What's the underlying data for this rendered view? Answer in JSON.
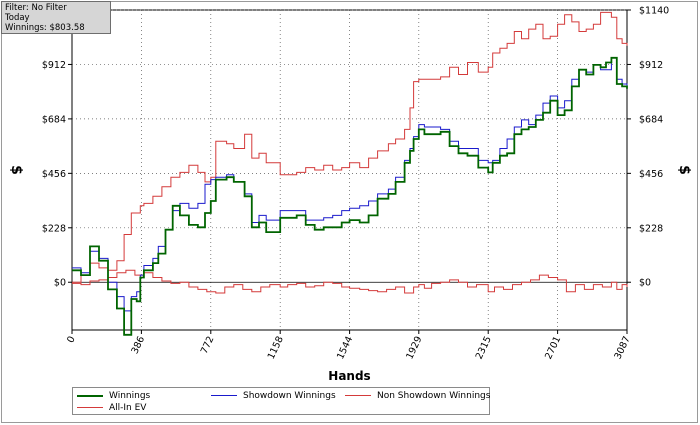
{
  "filter_panel": {
    "line1": "Filter: No Filter",
    "line2": "Today",
    "line3": "Winnings: $803.58"
  },
  "chart_data": {
    "type": "line",
    "xlabel": "Hands",
    "ylabel_left": "$",
    "ylabel_right": "$",
    "xlim": [
      0,
      3087
    ],
    "ylim": [
      -200,
      1140
    ],
    "x_ticks": [
      0,
      386,
      772,
      1158,
      1544,
      1929,
      2315,
      2701,
      3087
    ],
    "x_tick_labels": [
      "0",
      "386",
      "772",
      "1158",
      "1544",
      "1929",
      "2315",
      "2701",
      "3087"
    ],
    "y_ticks": [
      0,
      228,
      456,
      684,
      912,
      1140
    ],
    "y_tick_labels": [
      "$0",
      "$228",
      "$456",
      "$684",
      "$912",
      "$1140"
    ],
    "grid": true,
    "legend_position": "bottom",
    "colors": {
      "winnings": "#006400",
      "showdown": "#1a1acc",
      "non_showdown": "#d43a3a",
      "allin": "#d43a3a"
    },
    "series": [
      {
        "name": "Winnings",
        "key": "winnings",
        "x": [
          0,
          50,
          100,
          150,
          200,
          250,
          290,
          330,
          360,
          380,
          400,
          450,
          480,
          520,
          560,
          600,
          650,
          700,
          740,
          772,
          800,
          860,
          900,
          960,
          1000,
          1040,
          1080,
          1158,
          1250,
          1300,
          1350,
          1400,
          1450,
          1500,
          1544,
          1600,
          1650,
          1700,
          1760,
          1800,
          1850,
          1880,
          1900,
          1929,
          1960,
          2000,
          2050,
          2100,
          2150,
          2200,
          2260,
          2315,
          2340,
          2380,
          2420,
          2460,
          2500,
          2540,
          2580,
          2620,
          2660,
          2701,
          2740,
          2780,
          2820,
          2860,
          2900,
          2940,
          2970,
          3000,
          3030,
          3060,
          3087
        ],
        "values": [
          50,
          30,
          150,
          90,
          -30,
          -110,
          -220,
          -70,
          -80,
          20,
          50,
          80,
          120,
          220,
          320,
          280,
          240,
          230,
          290,
          340,
          430,
          440,
          420,
          360,
          230,
          250,
          210,
          270,
          280,
          240,
          220,
          230,
          230,
          250,
          260,
          250,
          280,
          350,
          370,
          420,
          500,
          550,
          600,
          640,
          620,
          620,
          630,
          570,
          540,
          530,
          480,
          460,
          500,
          530,
          540,
          620,
          640,
          650,
          680,
          710,
          760,
          700,
          720,
          820,
          890,
          870,
          910,
          900,
          920,
          940,
          830,
          820,
          810
        ]
      },
      {
        "name": "Showdown Winnings",
        "key": "showdown",
        "x": [
          0,
          50,
          100,
          150,
          200,
          250,
          290,
          330,
          360,
          380,
          400,
          450,
          480,
          520,
          560,
          600,
          650,
          700,
          740,
          772,
          800,
          860,
          900,
          960,
          1000,
          1040,
          1080,
          1158,
          1250,
          1300,
          1350,
          1400,
          1450,
          1500,
          1544,
          1600,
          1650,
          1700,
          1760,
          1800,
          1850,
          1880,
          1900,
          1929,
          1960,
          2000,
          2050,
          2100,
          2150,
          2200,
          2260,
          2315,
          2340,
          2380,
          2420,
          2460,
          2500,
          2540,
          2580,
          2620,
          2660,
          2701,
          2740,
          2780,
          2820,
          2860,
          2900,
          2940,
          2970,
          3000,
          3030,
          3060,
          3087
        ],
        "values": [
          60,
          40,
          130,
          100,
          0,
          -60,
          -120,
          -60,
          -40,
          30,
          70,
          100,
          150,
          220,
          300,
          330,
          310,
          330,
          410,
          430,
          440,
          450,
          420,
          370,
          250,
          280,
          260,
          300,
          300,
          260,
          260,
          270,
          280,
          300,
          310,
          320,
          340,
          370,
          390,
          440,
          510,
          560,
          610,
          660,
          650,
          650,
          640,
          590,
          560,
          560,
          510,
          500,
          510,
          560,
          600,
          650,
          680,
          660,
          700,
          750,
          780,
          730,
          760,
          850,
          890,
          880,
          910,
          890,
          890,
          940,
          850,
          830,
          820
        ]
      },
      {
        "name": "Non Showdown Winnings",
        "key": "non_showdown",
        "x": [
          0,
          50,
          100,
          150,
          200,
          250,
          300,
          350,
          400,
          450,
          500,
          550,
          600,
          650,
          700,
          750,
          800,
          850,
          900,
          950,
          1000,
          1050,
          1100,
          1158,
          1200,
          1250,
          1300,
          1350,
          1400,
          1450,
          1500,
          1544,
          1600,
          1650,
          1700,
          1750,
          1800,
          1850,
          1900,
          1929,
          1960,
          2000,
          2050,
          2100,
          2150,
          2200,
          2250,
          2315,
          2350,
          2400,
          2450,
          2500,
          2550,
          2600,
          2650,
          2701,
          2750,
          2800,
          2850,
          2900,
          2950,
          3000,
          3030,
          3060,
          3087
        ],
        "values": [
          -5,
          -10,
          5,
          10,
          20,
          40,
          50,
          30,
          40,
          20,
          5,
          -5,
          0,
          -20,
          -30,
          -40,
          -45,
          -20,
          -10,
          -30,
          -40,
          -20,
          -10,
          -20,
          -10,
          -5,
          -20,
          -15,
          0,
          -5,
          -20,
          -25,
          -30,
          -35,
          -40,
          -30,
          -20,
          -45,
          -20,
          -10,
          -25,
          -5,
          0,
          10,
          0,
          -20,
          -10,
          -40,
          -20,
          -30,
          -10,
          0,
          10,
          30,
          20,
          10,
          -40,
          -10,
          -30,
          -10,
          -20,
          0,
          -30,
          -10,
          -20
        ]
      },
      {
        "name": "All-In EV",
        "key": "allin",
        "x": [
          0,
          50,
          100,
          150,
          200,
          250,
          290,
          330,
          380,
          400,
          450,
          500,
          550,
          600,
          650,
          700,
          740,
          772,
          800,
          860,
          900,
          960,
          1000,
          1040,
          1080,
          1158,
          1250,
          1300,
          1350,
          1400,
          1450,
          1500,
          1544,
          1600,
          1650,
          1700,
          1760,
          1800,
          1850,
          1880,
          1900,
          1929,
          1960,
          2000,
          2050,
          2100,
          2150,
          2200,
          2260,
          2315,
          2340,
          2380,
          2420,
          2460,
          2500,
          2540,
          2580,
          2620,
          2660,
          2701,
          2740,
          2780,
          2820,
          2860,
          2900,
          2940,
          2970,
          3000,
          3030,
          3060,
          3087
        ],
        "values": [
          0,
          30,
          80,
          60,
          50,
          90,
          200,
          290,
          320,
          330,
          360,
          400,
          440,
          460,
          490,
          460,
          420,
          440,
          590,
          580,
          560,
          620,
          520,
          540,
          500,
          450,
          460,
          480,
          470,
          490,
          470,
          480,
          500,
          480,
          520,
          550,
          580,
          600,
          640,
          730,
          840,
          850,
          850,
          850,
          860,
          900,
          870,
          920,
          880,
          900,
          960,
          980,
          1000,
          1050,
          1020,
          1060,
          1080,
          1020,
          1030,
          1080,
          1120,
          1090,
          1050,
          1060,
          1080,
          1130,
          1130,
          1110,
          1020,
          1000,
          990
        ]
      }
    ]
  }
}
